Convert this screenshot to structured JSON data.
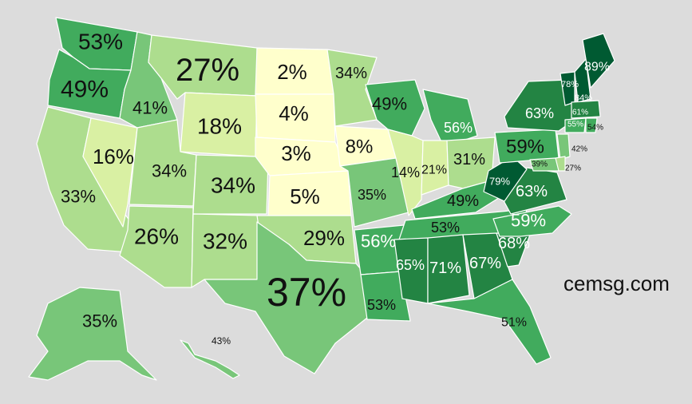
{
  "brand": "cemsg.com",
  "color_scale": [
    "#ffffcc",
    "#d9f0a3",
    "#addd8e",
    "#78c679",
    "#41ab5d",
    "#238443",
    "#005a32"
  ],
  "states": [
    {
      "name": "Washington",
      "value": "53%"
    },
    {
      "name": "Oregon",
      "value": "49%"
    },
    {
      "name": "California",
      "value": "33%"
    },
    {
      "name": "Nevada",
      "value": "16%"
    },
    {
      "name": "Idaho",
      "value": "41%"
    },
    {
      "name": "Montana",
      "value": "27%"
    },
    {
      "name": "Wyoming",
      "value": "18%"
    },
    {
      "name": "Utah",
      "value": "34%"
    },
    {
      "name": "Colorado",
      "value": "34%"
    },
    {
      "name": "Arizona",
      "value": "26%"
    },
    {
      "name": "New Mexico",
      "value": "32%"
    },
    {
      "name": "North Dakota",
      "value": "2%"
    },
    {
      "name": "South Dakota",
      "value": "4%"
    },
    {
      "name": "Nebraska",
      "value": "3%"
    },
    {
      "name": "Kansas",
      "value": "5%"
    },
    {
      "name": "Oklahoma",
      "value": "29%"
    },
    {
      "name": "Texas",
      "value": "37%"
    },
    {
      "name": "Minnesota",
      "value": "34%"
    },
    {
      "name": "Iowa",
      "value": "8%"
    },
    {
      "name": "Missouri",
      "value": "35%"
    },
    {
      "name": "Arkansas",
      "value": "56%"
    },
    {
      "name": "Louisiana",
      "value": "53%"
    },
    {
      "name": "Wisconsin",
      "value": "49%"
    },
    {
      "name": "Illinois",
      "value": "14%"
    },
    {
      "name": "Michigan",
      "value": "56%"
    },
    {
      "name": "Indiana",
      "value": "21%"
    },
    {
      "name": "Ohio",
      "value": "31%"
    },
    {
      "name": "Kentucky",
      "value": "49%"
    },
    {
      "name": "Tennessee",
      "value": "53%"
    },
    {
      "name": "Mississippi",
      "value": "65%"
    },
    {
      "name": "Alabama",
      "value": "71%"
    },
    {
      "name": "Georgia",
      "value": "67%"
    },
    {
      "name": "Florida",
      "value": "51%"
    },
    {
      "name": "South Carolina",
      "value": "68%"
    },
    {
      "name": "North Carolina",
      "value": "59%"
    },
    {
      "name": "Virginia",
      "value": "63%"
    },
    {
      "name": "West Virginia",
      "value": "79%"
    },
    {
      "name": "Pennsylvania",
      "value": "59%"
    },
    {
      "name": "New York",
      "value": "63%"
    },
    {
      "name": "Vermont",
      "value": "78%"
    },
    {
      "name": "New Hampshire",
      "value": "84%"
    },
    {
      "name": "Maine",
      "value": "89%"
    },
    {
      "name": "Massachusetts",
      "value": "61%"
    },
    {
      "name": "Connecticut",
      "value": "55%"
    },
    {
      "name": "Rhode Island",
      "value": "54%"
    },
    {
      "name": "New Jersey",
      "value": "42%"
    },
    {
      "name": "Delaware",
      "value": "27%"
    },
    {
      "name": "Maryland",
      "value": "39%"
    },
    {
      "name": "Alaska",
      "value": "35%"
    },
    {
      "name": "Hawaii",
      "value": "43%"
    }
  ]
}
